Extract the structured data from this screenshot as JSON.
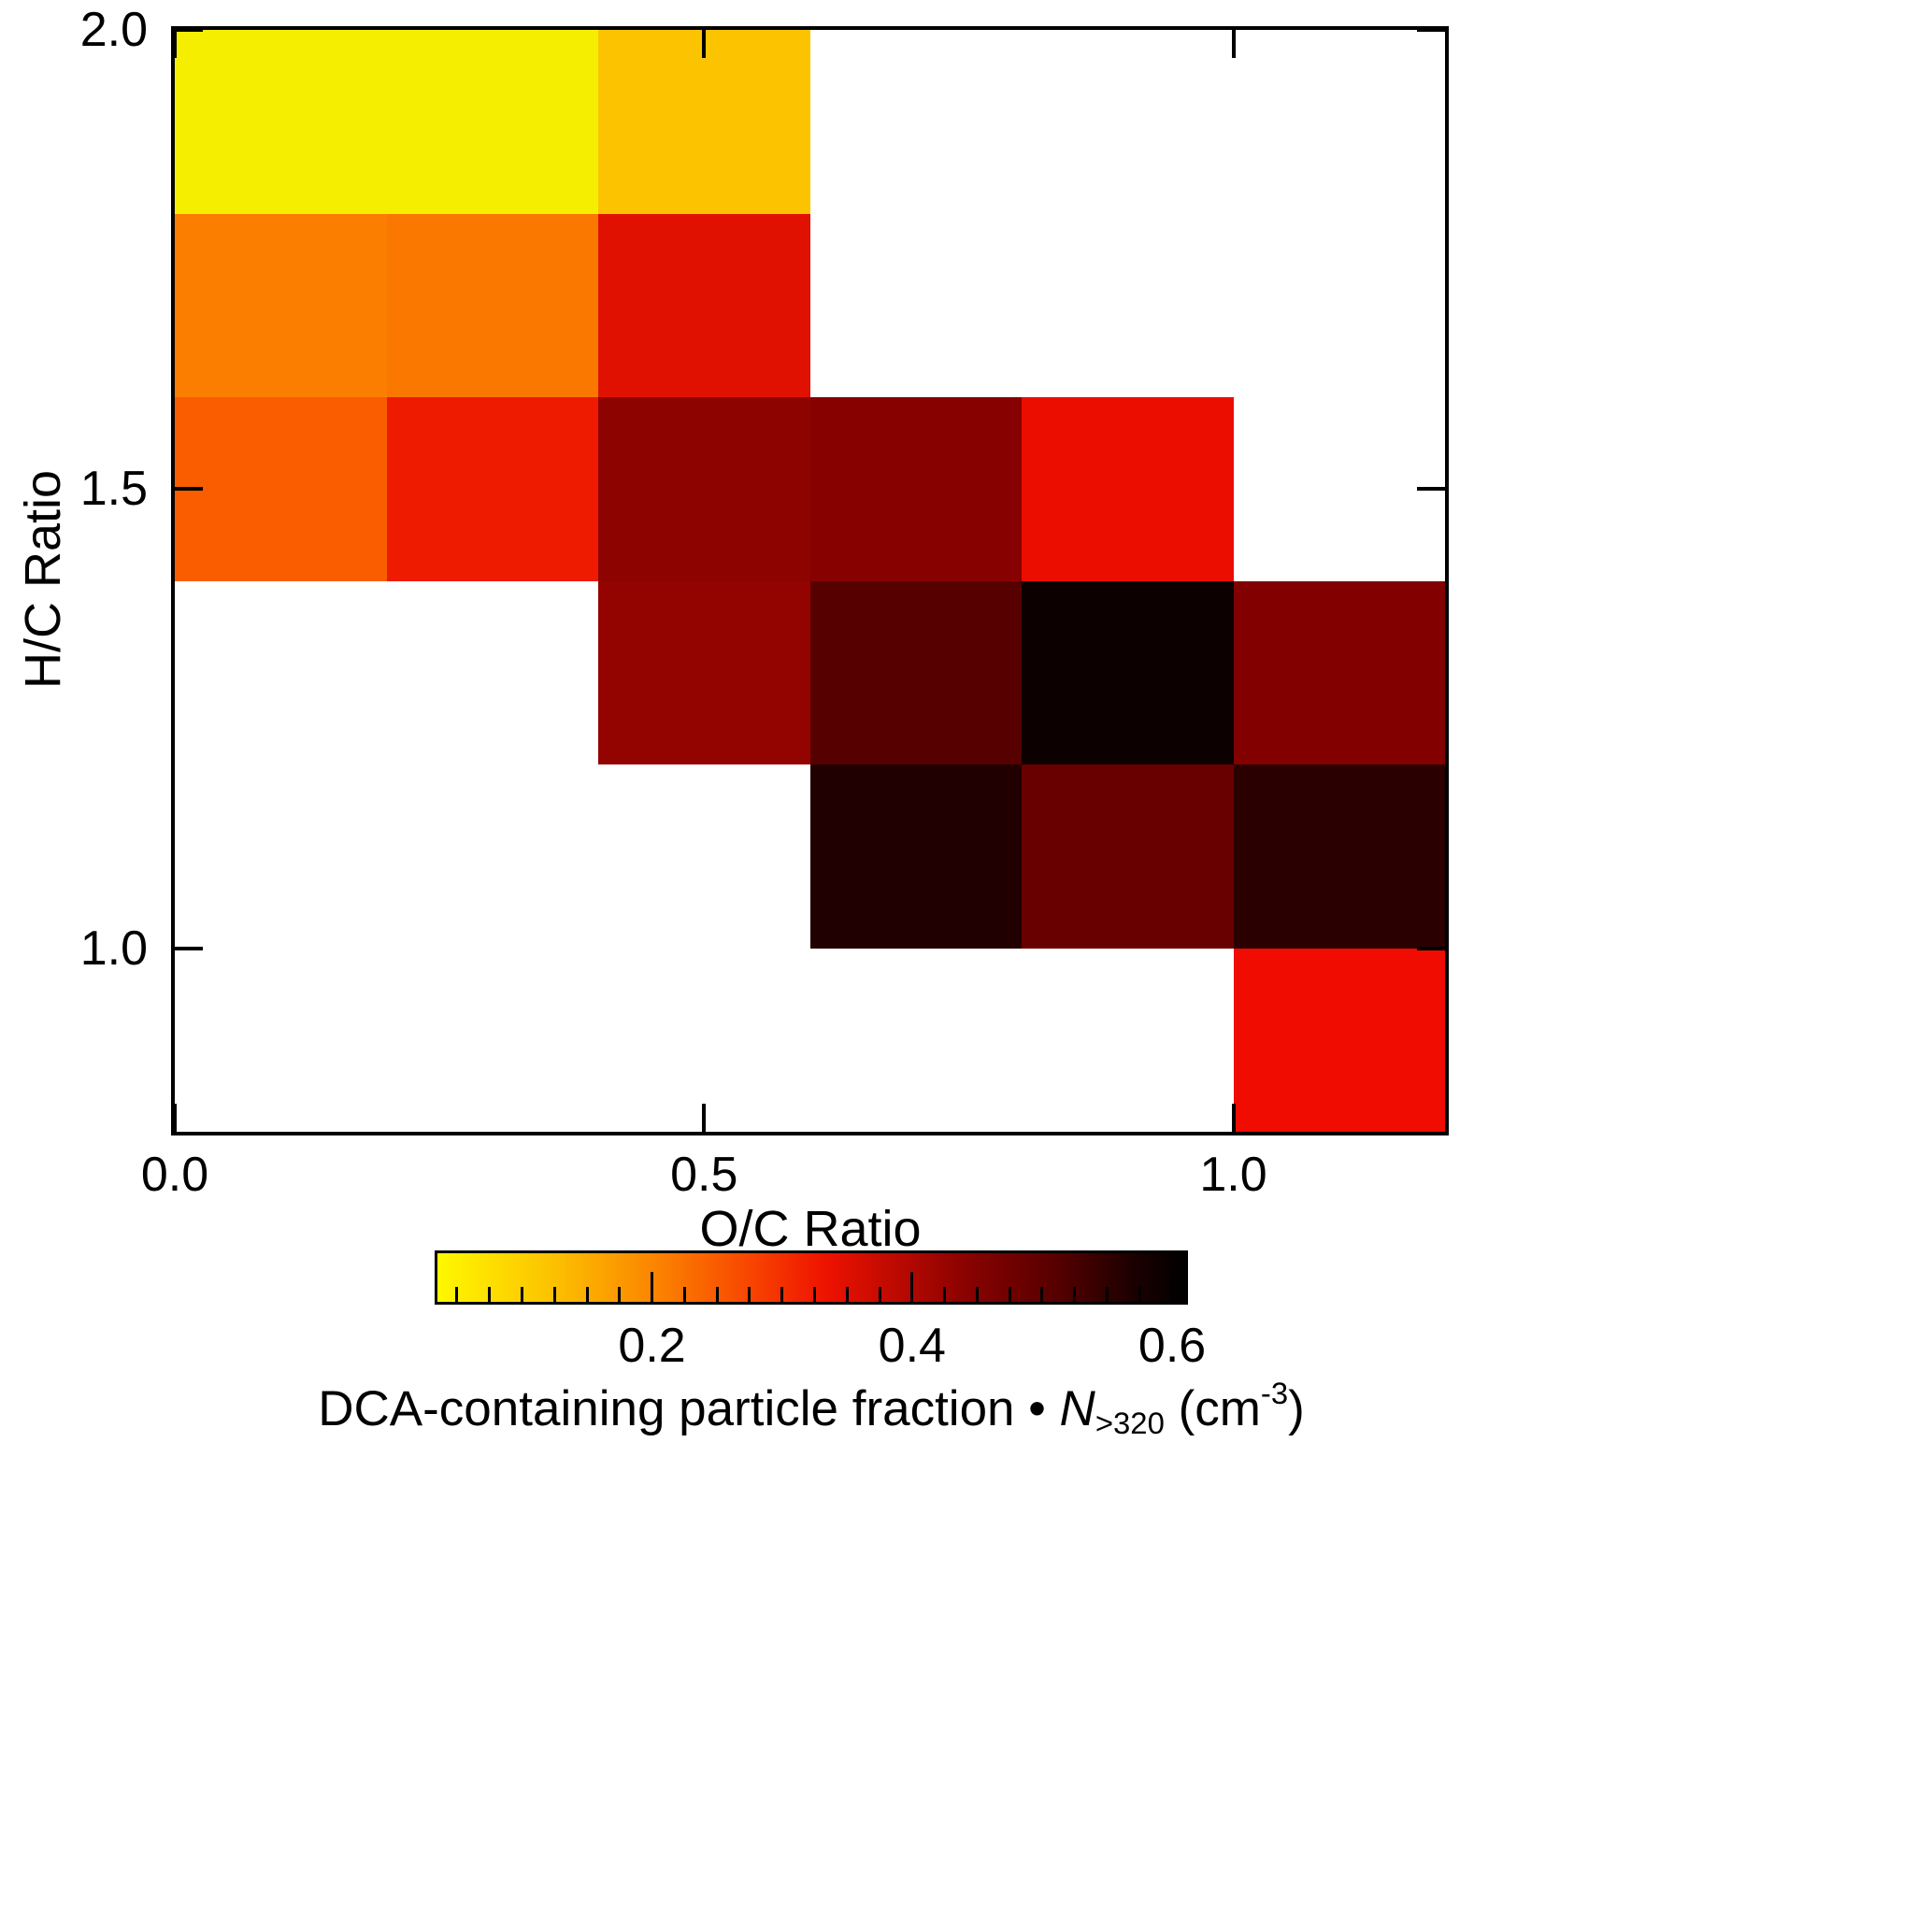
{
  "chart_data": {
    "type": "heatmap",
    "xlabel": "O/C Ratio",
    "ylabel": "H/C Ratio",
    "x_range": [
      0.0,
      1.2
    ],
    "y_range": [
      0.8,
      2.0
    ],
    "cell_size": 0.2,
    "grid": false,
    "background_color": "#ffffff",
    "x_ticks": [
      {
        "value": 0.0,
        "label": "0.0"
      },
      {
        "value": 0.5,
        "label": "0.5"
      },
      {
        "value": 1.0,
        "label": "1.0"
      }
    ],
    "y_ticks": [
      {
        "value": 2.0,
        "label": "2.0"
      },
      {
        "value": 1.5,
        "label": "1.5"
      },
      {
        "value": 1.0,
        "label": "1.0"
      }
    ],
    "cells": [
      {
        "x0": 0.0,
        "x1": 0.2,
        "y0": 1.8,
        "y1": 2.0,
        "value": 0.05,
        "color": "#f6ee00"
      },
      {
        "x0": 0.2,
        "x1": 0.4,
        "y0": 1.8,
        "y1": 2.0,
        "value": 0.05,
        "color": "#f6ee00"
      },
      {
        "x0": 0.4,
        "x1": 0.6,
        "y0": 1.8,
        "y1": 2.0,
        "value": 0.12,
        "color": "#fcc300"
      },
      {
        "x0": 0.0,
        "x1": 0.2,
        "y0": 1.6,
        "y1": 1.8,
        "value": 0.21,
        "color": "#fb7e00"
      },
      {
        "x0": 0.2,
        "x1": 0.4,
        "y0": 1.6,
        "y1": 1.8,
        "value": 0.21,
        "color": "#fa7800"
      },
      {
        "x0": 0.4,
        "x1": 0.6,
        "y0": 1.6,
        "y1": 1.8,
        "value": 0.33,
        "color": "#e01100"
      },
      {
        "x0": 0.0,
        "x1": 0.2,
        "y0": 1.4,
        "y1": 1.6,
        "value": 0.25,
        "color": "#f95d00"
      },
      {
        "x0": 0.2,
        "x1": 0.4,
        "y0": 1.4,
        "y1": 1.6,
        "value": 0.31,
        "color": "#ef1b00"
      },
      {
        "x0": 0.4,
        "x1": 0.6,
        "y0": 1.4,
        "y1": 1.6,
        "value": 0.43,
        "color": "#8d0300"
      },
      {
        "x0": 0.6,
        "x1": 0.8,
        "y0": 1.4,
        "y1": 1.6,
        "value": 0.44,
        "color": "#860100"
      },
      {
        "x0": 0.8,
        "x1": 1.0,
        "y0": 1.4,
        "y1": 1.6,
        "value": 0.33,
        "color": "#ea0d00"
      },
      {
        "x0": 0.4,
        "x1": 0.6,
        "y0": 1.2,
        "y1": 1.4,
        "value": 0.43,
        "color": "#930300"
      },
      {
        "x0": 0.6,
        "x1": 0.8,
        "y0": 1.2,
        "y1": 1.4,
        "value": 0.5,
        "color": "#570000"
      },
      {
        "x0": 0.8,
        "x1": 1.0,
        "y0": 1.2,
        "y1": 1.4,
        "value": 0.6,
        "color": "#0c0100"
      },
      {
        "x0": 1.0,
        "x1": 1.2,
        "y0": 1.2,
        "y1": 1.4,
        "value": 0.45,
        "color": "#830000"
      },
      {
        "x0": 0.6,
        "x1": 0.8,
        "y0": 1.0,
        "y1": 1.2,
        "value": 0.56,
        "color": "#200000"
      },
      {
        "x0": 0.8,
        "x1": 1.0,
        "y0": 1.0,
        "y1": 1.2,
        "value": 0.48,
        "color": "#690000"
      },
      {
        "x0": 1.0,
        "x1": 1.2,
        "y0": 1.0,
        "y1": 1.2,
        "value": 0.55,
        "color": "#2b0000"
      },
      {
        "x0": 1.0,
        "x1": 1.2,
        "y0": 0.8,
        "y1": 1.0,
        "value": 0.33,
        "color": "#f00c00"
      }
    ],
    "colorbar": {
      "label_prefix": "DCA-containing particle fraction • ",
      "label_symbol": "N",
      "label_subscript": ">320",
      "label_unit_open": " (cm",
      "label_exponent": "-3",
      "label_unit_close": ")",
      "range": [
        0.035,
        0.61
      ],
      "minor_tick_step": 0.025,
      "major_ticks": [
        {
          "value": 0.2,
          "label": "0.2"
        },
        {
          "value": 0.4,
          "label": "0.4"
        },
        {
          "value": 0.6,
          "label": "0.6"
        }
      ],
      "gradient": [
        {
          "pos": 0.0,
          "color": "#fff800"
        },
        {
          "pos": 0.15,
          "color": "#fcc300"
        },
        {
          "pos": 0.3,
          "color": "#fb8000"
        },
        {
          "pos": 0.42,
          "color": "#f84400"
        },
        {
          "pos": 0.52,
          "color": "#ee1200"
        },
        {
          "pos": 0.7,
          "color": "#8d0200"
        },
        {
          "pos": 0.83,
          "color": "#550000"
        },
        {
          "pos": 0.93,
          "color": "#1c0000"
        },
        {
          "pos": 1.0,
          "color": "#000000"
        }
      ]
    }
  }
}
